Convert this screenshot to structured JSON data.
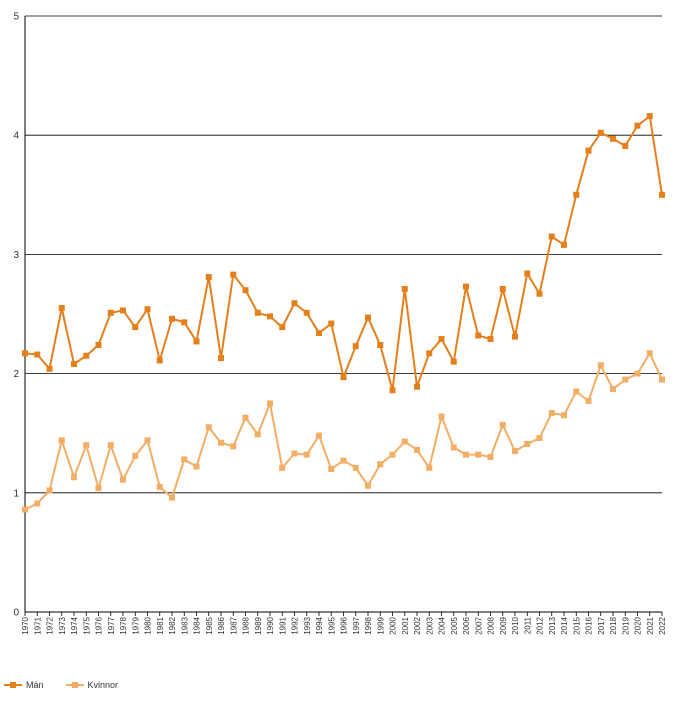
{
  "chart_data": {
    "type": "line",
    "x": [
      1970,
      1971,
      1972,
      1973,
      1974,
      1975,
      1976,
      1977,
      1978,
      1979,
      1980,
      1981,
      1982,
      1983,
      1984,
      1985,
      1986,
      1987,
      1988,
      1989,
      1990,
      1991,
      1992,
      1993,
      1994,
      1995,
      1996,
      1997,
      1998,
      1999,
      2000,
      2001,
      2002,
      2003,
      2004,
      2005,
      2006,
      2007,
      2008,
      2009,
      2010,
      2011,
      2012,
      2013,
      2014,
      2015,
      2016,
      2017,
      2018,
      2019,
      2020,
      2021,
      2022
    ],
    "series": [
      {
        "name": "Män",
        "color": "#e57f1b",
        "values": [
          2.17,
          2.16,
          2.04,
          2.55,
          2.08,
          2.15,
          2.24,
          2.51,
          2.53,
          2.39,
          2.54,
          2.11,
          2.46,
          2.43,
          2.27,
          2.81,
          2.13,
          2.83,
          2.7,
          2.51,
          2.48,
          2.39,
          2.59,
          2.51,
          2.34,
          2.42,
          1.97,
          2.23,
          2.47,
          2.24,
          1.86,
          2.71,
          1.89,
          2.17,
          2.29,
          2.1,
          2.73,
          2.32,
          2.29,
          2.71,
          2.31,
          2.84,
          2.67,
          3.15,
          3.08,
          3.5,
          3.87,
          4.02,
          3.97,
          3.91,
          4.08,
          4.16,
          3.5
        ]
      },
      {
        "name": "Kvinnor",
        "color": "#f3ae65",
        "values": [
          0.86,
          0.91,
          1.02,
          1.44,
          1.13,
          1.4,
          1.04,
          1.4,
          1.11,
          1.31,
          1.44,
          1.05,
          0.96,
          1.28,
          1.22,
          1.55,
          1.42,
          1.39,
          1.63,
          1.49,
          1.75,
          1.21,
          1.33,
          1.32,
          1.48,
          1.2,
          1.27,
          1.21,
          1.06,
          1.24,
          1.32,
          1.43,
          1.36,
          1.21,
          1.64,
          1.38,
          1.32,
          1.32,
          1.3,
          1.57,
          1.35,
          1.41,
          1.46,
          1.67,
          1.65,
          1.85,
          1.77,
          2.07,
          1.87,
          1.95,
          2.0,
          2.17,
          1.95
        ]
      }
    ],
    "yticks": [
      "0",
      "1",
      "2",
      "3",
      "4",
      "5"
    ],
    "ylim": [
      0,
      5
    ],
    "xlim": [
      1970,
      2022
    ],
    "grid": true,
    "legend_position": "bottom-left"
  }
}
